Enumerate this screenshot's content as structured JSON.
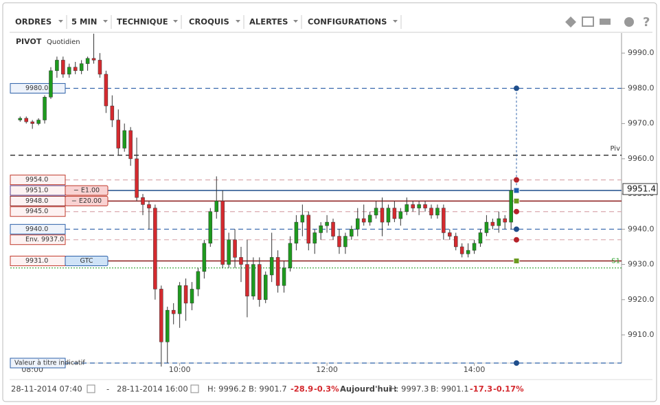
{
  "toolbar": {
    "menus": [
      "ORDRES",
      "5 MIN",
      "TECHNIQUE",
      "CROQUIS",
      "ALERTES",
      "CONFIGURATIONS"
    ]
  },
  "chart_data": {
    "type": "candlestick",
    "title": "PIVOT",
    "subtitle": "Quotidien",
    "up_color": "#1e9a1e",
    "down_color": "#d42a2f",
    "x": [
      470,
      475,
      480,
      485,
      490,
      495,
      500,
      505,
      510,
      515,
      520,
      525,
      530,
      535,
      540,
      545,
      550,
      555,
      560,
      565,
      570,
      575,
      580,
      585,
      590,
      595,
      600,
      605,
      610,
      615,
      620,
      625,
      630,
      635,
      640,
      645,
      650,
      655,
      660,
      665,
      670,
      675,
      680,
      685,
      690,
      695,
      700,
      705,
      710,
      715,
      720,
      725,
      730,
      735,
      740,
      745,
      750,
      755,
      760,
      765,
      770,
      775,
      780,
      785,
      790,
      795,
      800,
      805,
      810,
      815,
      820,
      825,
      830,
      835,
      840,
      845,
      850,
      855,
      860,
      865,
      870
    ],
    "open": [
      9971,
      9971.5,
      9970.5,
      9970,
      9971,
      9977.5,
      9985,
      9988,
      9984,
      9986,
      9985,
      9987,
      9988.5,
      9988,
      9984,
      9975,
      9971,
      9963,
      9968,
      9960,
      9949,
      9947,
      9946,
      9923,
      9908,
      9917,
      9916,
      9924,
      9919,
      9923,
      9928,
      9936,
      9945,
      9948,
      9930,
      9937,
      9932,
      9930,
      9921,
      9930,
      9920,
      9927,
      9932,
      9924,
      9929,
      9936,
      9942,
      9944,
      9936,
      9939,
      9941,
      9942,
      9938,
      9935,
      9938,
      9940,
      9943,
      9942,
      9944,
      9946,
      9942,
      9946,
      9943,
      9945,
      9947,
      9946,
      9947,
      9946,
      9944,
      9946,
      9939,
      9938,
      9935,
      9933,
      9934,
      9936,
      9939,
      9942,
      9941,
      9943,
      9942
    ],
    "high": [
      9972,
      9972,
      9971,
      9971.5,
      9978,
      9986,
      9989,
      9989,
      9987,
      9987.5,
      9988,
      9989,
      9995.5,
      9990,
      9985,
      9978,
      9974,
      9970,
      9969,
      9966,
      9950,
      9948,
      9947,
      9924,
      9918,
      9919,
      9925,
      9926,
      9925,
      9929,
      9937,
      9946,
      9955,
      9951,
      9939,
      9940,
      9935,
      9937,
      9932,
      9932,
      9928,
      9939,
      9934,
      9931,
      9938,
      9944,
      9947,
      9945,
      9940,
      9942,
      9944,
      9943,
      9940,
      9939,
      9941,
      9946,
      9947,
      9945,
      9948,
      9949,
      9947,
      9948,
      9946,
      9949,
      9948,
      9948,
      9948,
      9947,
      9947,
      9947,
      9940,
      9939,
      9936,
      9936,
      9937,
      9940,
      9944,
      9943,
      9945,
      9944,
      9954
    ],
    "low": [
      9970.5,
      9970,
      9968.5,
      9969.5,
      9970,
      9977,
      9983,
      9983,
      9983,
      9984,
      9984,
      9985,
      9987,
      9983,
      9973,
      9969,
      9961,
      9962,
      9958,
      9948,
      9944,
      9940,
      9920,
      9901,
      9902,
      9913,
      9912,
      9914,
      9917,
      9921,
      9926,
      9935,
      9943,
      9929,
      9929,
      9929,
      9925,
      9915,
      9920,
      9918,
      9919,
      9925,
      9922,
      9922,
      9928,
      9934,
      9938,
      9934,
      9933,
      9937,
      9939,
      9937,
      9933,
      9933,
      9937,
      9938,
      9941,
      9941,
      9943,
      9938,
      9941,
      9942,
      9941,
      9944,
      9945,
      9944,
      9945,
      9943,
      9943,
      9937,
      9937,
      9934,
      9932,
      9932,
      9933,
      9935,
      9938,
      9940,
      9939,
      9940,
      9940
    ],
    "close": [
      9971.5,
      9970.5,
      9970,
      9971,
      9977.5,
      9985,
      9988,
      9984,
      9986,
      9985,
      9987,
      9988.5,
      9988,
      9984,
      9975,
      9971,
      9963,
      9968,
      9960,
      9949,
      9947,
      9946,
      9923,
      9908,
      9917,
      9916,
      9924,
      9919,
      9923,
      9928,
      9936,
      9945,
      9948,
      9930,
      9937,
      9932,
      9930,
      9921,
      9930,
      9920,
      9927,
      9932,
      9924,
      9929,
      9936,
      9942,
      9944,
      9936,
      9939,
      9941,
      9942,
      9938,
      9935,
      9938,
      9940,
      9943,
      9942,
      9944,
      9946,
      9942,
      9946,
      9943,
      9945,
      9947,
      9946,
      9947,
      9946,
      9944,
      9946,
      9939,
      9938,
      9935,
      9933,
      9934,
      9936,
      9939,
      9942,
      9941,
      9943,
      9942,
      9951
    ],
    "xlim": [
      462,
      960
    ],
    "xticks": [
      {
        "value": 480,
        "label": "08:00"
      },
      {
        "value": 600,
        "label": "10:00"
      },
      {
        "value": 720,
        "label": "12:00"
      },
      {
        "value": 840,
        "label": "14:00"
      }
    ],
    "ylim": [
      9902,
      9995.7
    ],
    "yticks": [
      {
        "value": 9910,
        "label": "9910.0"
      },
      {
        "value": 9920,
        "label": "9920.0"
      },
      {
        "value": 9930,
        "label": "9930.0"
      },
      {
        "value": 9940,
        "label": "9940.0"
      },
      {
        "value": 9950,
        "label": "9950.0"
      },
      {
        "value": 9960,
        "label": "9960.0"
      },
      {
        "value": 9970,
        "label": "9970.0"
      },
      {
        "value": 9980,
        "label": "9980.0"
      },
      {
        "value": 9990,
        "label": "9990.0"
      }
    ],
    "last_price": {
      "value": 9951.4,
      "label": "9951.4"
    },
    "levels": [
      {
        "value": 9980,
        "label": "9980.0",
        "style": "dashed",
        "color": "#2b5fa8",
        "box_color": "#2b5fa8",
        "marker": "circle",
        "marker_color": "#1f4e8c"
      },
      {
        "value": 9961,
        "style": "dashed",
        "color": "#111111",
        "right_label": "Piv"
      },
      {
        "value": 9954,
        "label": "9954.0",
        "style": "dashed",
        "color": "#d9a9ae",
        "box_color": "#c0392b",
        "marker": "circle",
        "marker_color": "#b5222a"
      },
      {
        "value": 9951,
        "label": "9951.0",
        "tag": "− E1.00",
        "tag_color": "#c0392b",
        "style": "solid",
        "color": "#1f4e8c",
        "box_color": "#5a3f8c",
        "marker": "square",
        "marker_color": "#1f5fae"
      },
      {
        "value": 9948,
        "label": "9948.0",
        "tag": "− E20.00",
        "tag_color": "#c0392b",
        "style": "solid",
        "color": "#8b1a1a",
        "box_color": "#8b1a1a",
        "marker": "square",
        "marker_color": "#6a9a1f"
      },
      {
        "value": 9945,
        "label": "9945.0",
        "style": "dashed",
        "color": "#d9a9ae",
        "box_color": "#c0392b",
        "marker": "circle",
        "marker_color": "#b5222a"
      },
      {
        "value": 9940,
        "label": "9940.0",
        "style": "dashed",
        "color": "#2b5fa8",
        "box_color": "#2b5fa8",
        "marker": "circle",
        "marker_color": "#1f4e8c"
      },
      {
        "value": 9937,
        "label": "Env. 9937.0",
        "style": "dashed",
        "color": "#d9a9ae",
        "box_color": "#c0392b",
        "marker": "circle",
        "marker_color": "#b5222a"
      },
      {
        "value": 9931,
        "label": "9931.0",
        "tag": "GTC",
        "tag_color": "#2b5fa8",
        "style": "solid",
        "color": "#8b1a1a",
        "box_color": "#c0392b",
        "right_label": "S1",
        "marker": "square",
        "marker_color": "#6a9a1f"
      },
      {
        "value": 9929,
        "style": "dotted",
        "color": "#2ea02e"
      },
      {
        "value": 9902,
        "label": "Valeur à titre indicatif",
        "style": "dashed",
        "color": "#2b5fa8",
        "box_color": "#2b5fa8",
        "marker": "circle",
        "marker_color": "#1f4e8c"
      }
    ]
  },
  "footer": {
    "items": [
      "28-11-2014 07:40",
      "-",
      "28-11-2014 16:00",
      "H: 9996.2",
      "B: 9901.7",
      "-28.9",
      "-0.3%",
      "Aujourd'hui :",
      "H: 9997.3",
      "B: 9901.1",
      "-17.3",
      "-0.17%"
    ]
  }
}
